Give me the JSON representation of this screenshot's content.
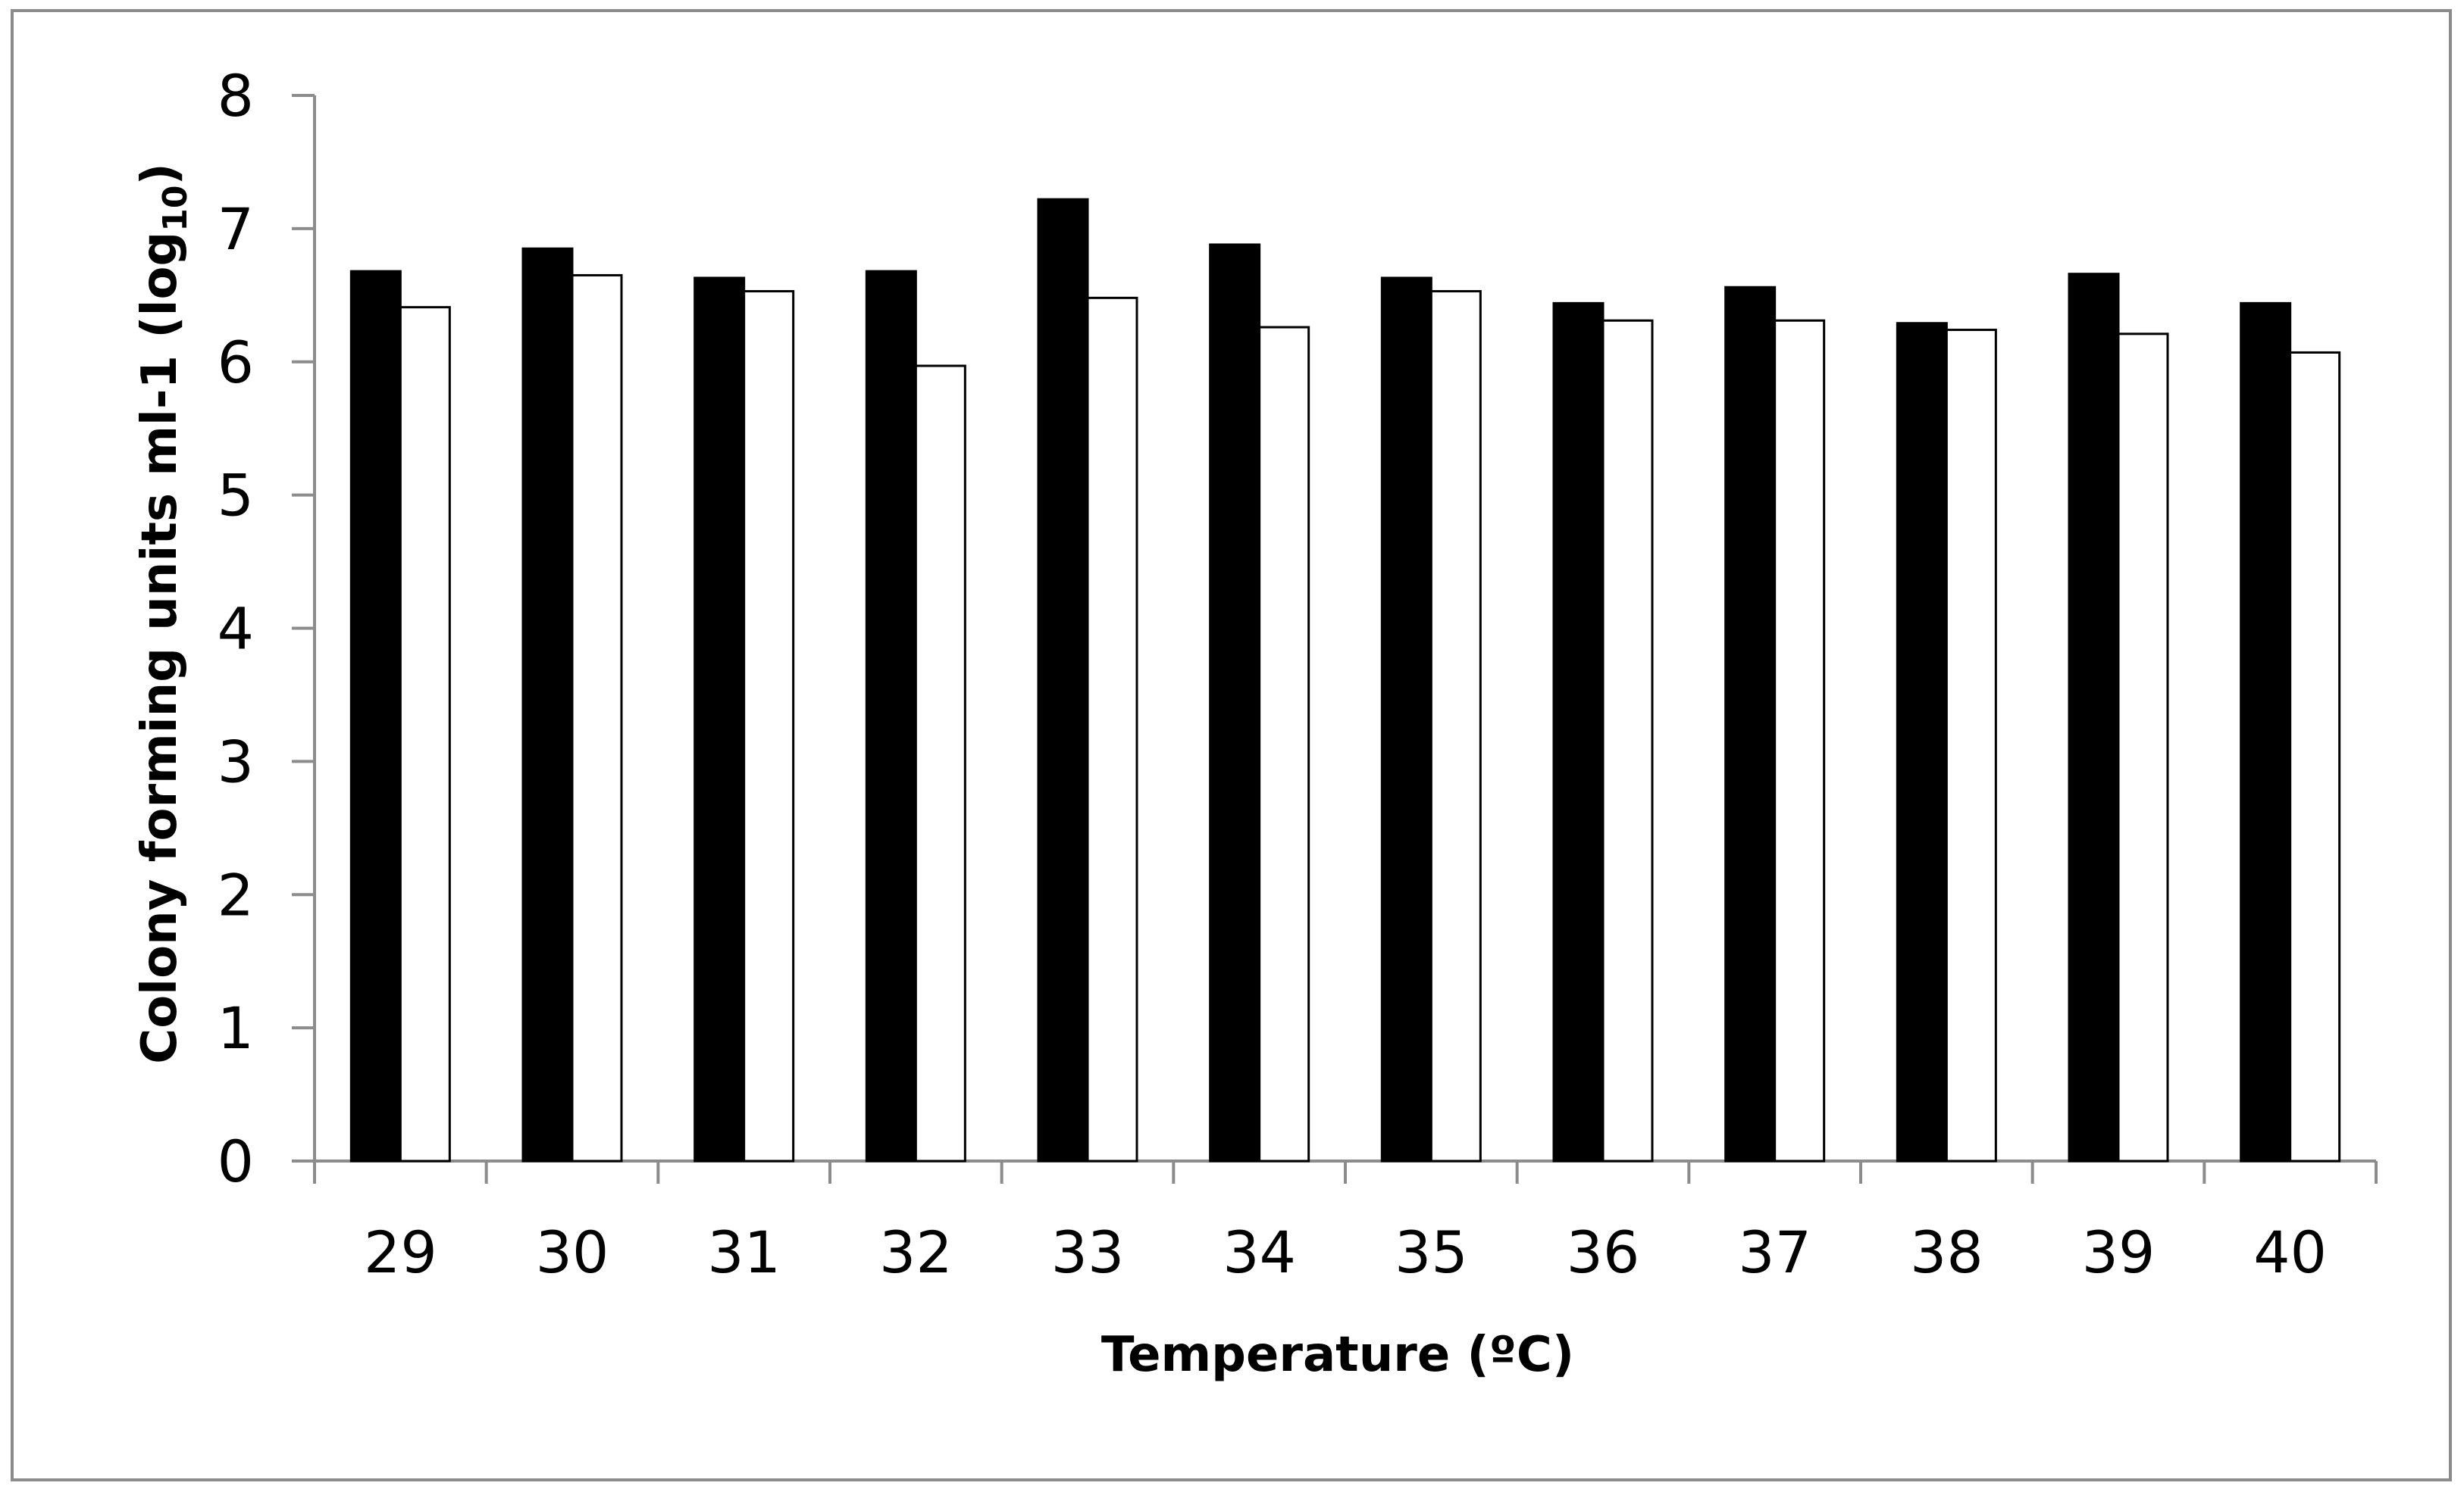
{
  "chart_data": {
    "type": "bar",
    "xlabel": "Temperature (ºC)",
    "ylabel_main": "Colony forming units ml-1 (log",
    "ylabel_sub": "10",
    "ylabel_close": ")",
    "ylim": [
      0,
      8
    ],
    "yticks": [
      0,
      1,
      2,
      3,
      4,
      5,
      6,
      7,
      8
    ],
    "grid": false,
    "legend": "none",
    "categories": [
      "29",
      "30",
      "31",
      "32",
      "33",
      "34",
      "35",
      "36",
      "37",
      "38",
      "39",
      "40"
    ],
    "series": [
      {
        "fill": "#000000",
        "values": [
          6.68,
          6.85,
          6.63,
          6.68,
          7.22,
          6.88,
          6.63,
          6.44,
          6.56,
          6.29,
          6.66,
          6.44
        ]
      },
      {
        "fill": "#ffffff",
        "values": [
          6.41,
          6.65,
          6.53,
          5.97,
          6.48,
          6.26,
          6.53,
          6.31,
          6.31,
          6.24,
          6.21,
          6.07
        ]
      }
    ]
  }
}
